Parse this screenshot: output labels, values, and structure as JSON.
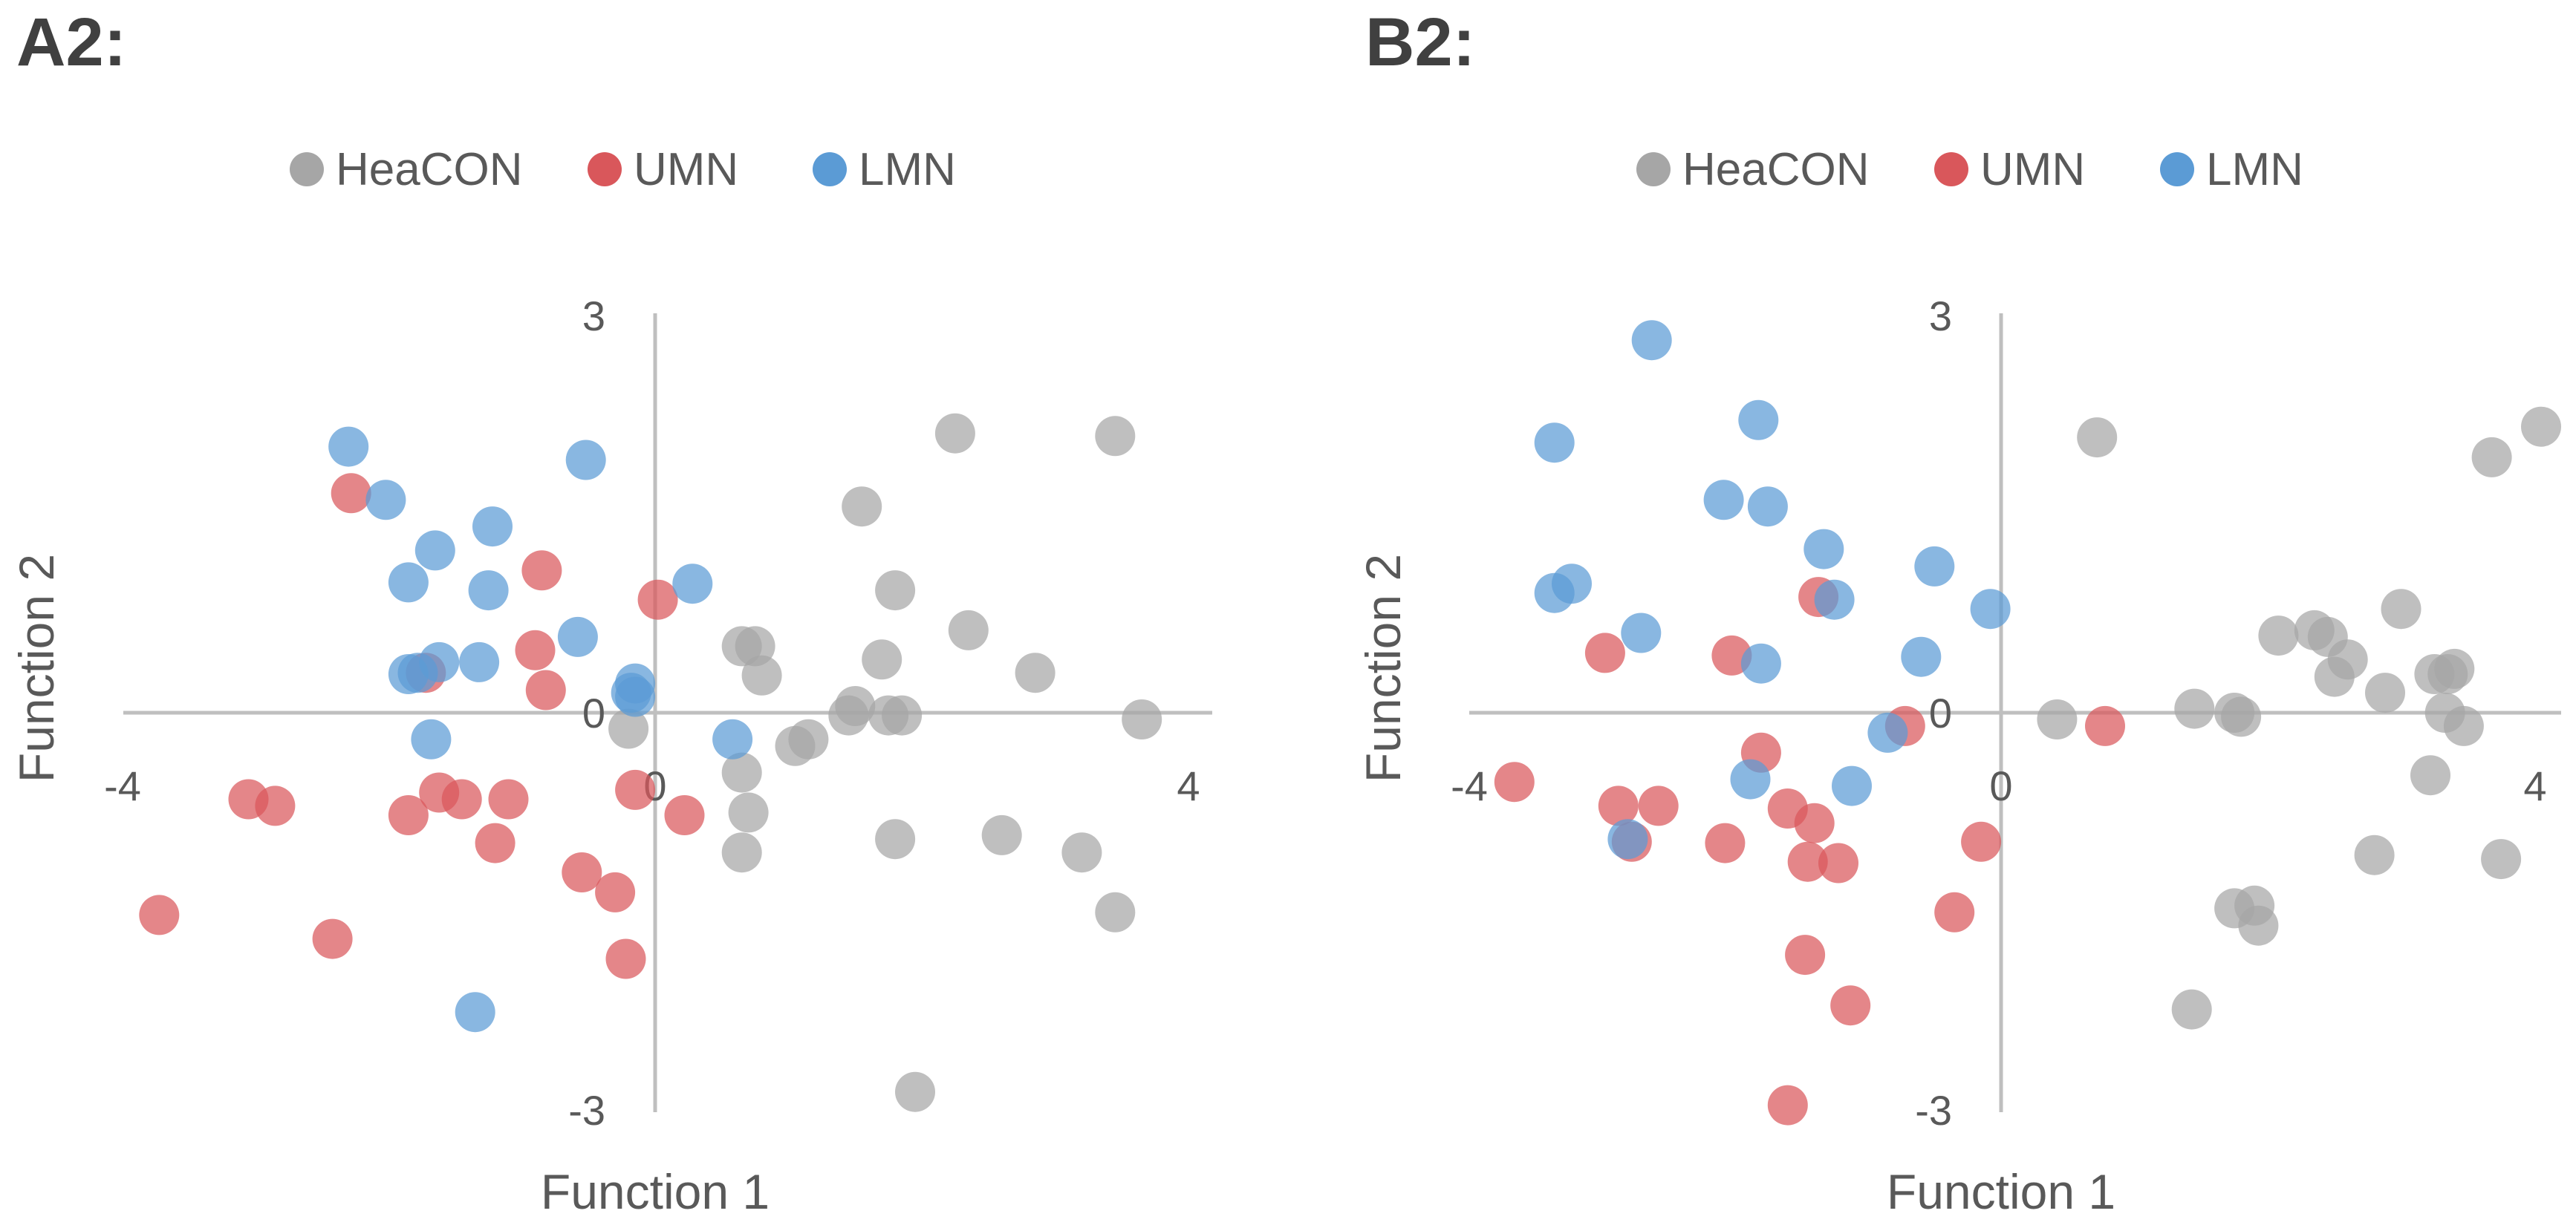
{
  "colors": {
    "HeaCON": "#a6a6a6",
    "UMN": "#d9575b",
    "LMN": "#5b9bd5"
  },
  "chart_data": [
    {
      "panel": "A2:",
      "type": "scatter",
      "xlabel": "Function 1",
      "ylabel": "Function 2",
      "xlim": [
        -4,
        4
      ],
      "ylim": [
        -3,
        3
      ],
      "xticks": [
        -4,
        0,
        4
      ],
      "yticks": [
        3,
        0,
        -3
      ],
      "xtick_labels": [
        "-4",
        "0",
        "4"
      ],
      "ytick_labels": [
        "3",
        "0",
        "-3"
      ],
      "legend": [
        "HeaCON",
        "UMN",
        "LMN"
      ],
      "legend_position": "top",
      "series": [
        {
          "name": "HeaCON",
          "points": [
            [
              2.25,
              2.1
            ],
            [
              3.45,
              2.08
            ],
            [
              1.55,
              1.55
            ],
            [
              1.8,
              0.92
            ],
            [
              2.35,
              0.62
            ],
            [
              0.65,
              0.5
            ],
            [
              0.75,
              0.5
            ],
            [
              0.8,
              0.28
            ],
            [
              1.7,
              0.4
            ],
            [
              2.85,
              0.3
            ],
            [
              1.5,
              0.05
            ],
            [
              1.45,
              -0.02
            ],
            [
              1.75,
              -0.02
            ],
            [
              1.85,
              -0.02
            ],
            [
              1.15,
              -0.2
            ],
            [
              1.05,
              -0.25
            ],
            [
              -0.2,
              -0.12
            ],
            [
              0.65,
              -0.45
            ],
            [
              0.7,
              -0.75
            ],
            [
              0.65,
              -1.05
            ],
            [
              1.8,
              -0.95
            ],
            [
              2.6,
              -0.92
            ],
            [
              3.2,
              -1.05
            ],
            [
              3.65,
              -0.05
            ],
            [
              3.45,
              -1.5
            ],
            [
              1.95,
              -2.85
            ]
          ]
        },
        {
          "name": "UMN",
          "points": [
            [
              -2.28,
              1.65
            ],
            [
              -0.85,
              1.07
            ],
            [
              0.02,
              0.85
            ],
            [
              -0.9,
              0.47
            ],
            [
              -1.72,
              0.3
            ],
            [
              -0.82,
              0.17
            ],
            [
              -3.05,
              -0.65
            ],
            [
              -2.85,
              -0.7
            ],
            [
              -1.62,
              -0.6
            ],
            [
              -1.45,
              -0.65
            ],
            [
              -1.1,
              -0.65
            ],
            [
              -1.85,
              -0.77
            ],
            [
              -1.2,
              -0.98
            ],
            [
              -0.15,
              -0.58
            ],
            [
              0.22,
              -0.77
            ],
            [
              -0.55,
              -1.2
            ],
            [
              -0.3,
              -1.35
            ],
            [
              -3.72,
              -1.52
            ],
            [
              -2.42,
              -1.7
            ],
            [
              -0.22,
              -1.85
            ]
          ]
        },
        {
          "name": "LMN",
          "points": [
            [
              -2.3,
              2.0
            ],
            [
              -2.02,
              1.6
            ],
            [
              -0.52,
              1.9
            ],
            [
              -1.65,
              1.22
            ],
            [
              -1.22,
              1.4
            ],
            [
              -1.85,
              0.98
            ],
            [
              -1.25,
              0.92
            ],
            [
              -0.58,
              0.57
            ],
            [
              0.28,
              0.97
            ],
            [
              -1.62,
              0.38
            ],
            [
              -1.32,
              0.38
            ],
            [
              -1.85,
              0.29
            ],
            [
              -1.78,
              0.3
            ],
            [
              -0.15,
              0.22
            ],
            [
              -0.18,
              0.15
            ],
            [
              -0.15,
              0.12
            ],
            [
              0.58,
              -0.2
            ],
            [
              -1.68,
              -0.2
            ],
            [
              -1.35,
              -2.25
            ]
          ]
        }
      ]
    },
    {
      "panel": "B2:",
      "type": "scatter",
      "xlabel": "Function 1",
      "ylabel": "Function 2",
      "xlim": [
        -4,
        4
      ],
      "ylim": [
        -3,
        3
      ],
      "xticks": [
        -4,
        0,
        4
      ],
      "yticks": [
        3,
        0,
        -3
      ],
      "xtick_labels": [
        "-4",
        "0",
        "4"
      ],
      "ytick_labels": [
        "3",
        "0",
        "-3"
      ],
      "legend": [
        "HeaCON",
        "UMN",
        "LMN"
      ],
      "legend_position": "top",
      "series": [
        {
          "name": "HeaCON",
          "points": [
            [
              0.72,
              2.07
            ],
            [
              4.05,
              2.15
            ],
            [
              3.68,
              1.92
            ],
            [
              3.0,
              0.78
            ],
            [
              2.08,
              0.58
            ],
            [
              2.35,
              0.62
            ],
            [
              2.45,
              0.57
            ],
            [
              2.6,
              0.4
            ],
            [
              2.5,
              0.27
            ],
            [
              3.25,
              0.29
            ],
            [
              3.35,
              0.29
            ],
            [
              3.4,
              0.33
            ],
            [
              2.88,
              0.15
            ],
            [
              0.42,
              -0.05
            ],
            [
              1.45,
              0.03
            ],
            [
              1.75,
              0.0
            ],
            [
              1.8,
              -0.03
            ],
            [
              3.33,
              0.0
            ],
            [
              3.47,
              -0.1
            ],
            [
              3.22,
              -0.47
            ],
            [
              2.8,
              -1.07
            ],
            [
              3.75,
              -1.1
            ],
            [
              1.75,
              -1.47
            ],
            [
              1.9,
              -1.45
            ],
            [
              1.93,
              -1.6
            ],
            [
              1.43,
              -2.23
            ]
          ]
        },
        {
          "name": "UMN",
          "points": [
            [
              -1.37,
              0.87
            ],
            [
              -2.97,
              0.45
            ],
            [
              -2.02,
              0.43
            ],
            [
              -0.72,
              -0.1
            ],
            [
              0.78,
              -0.1
            ],
            [
              -3.65,
              -0.52
            ],
            [
              -2.87,
              -0.7
            ],
            [
              -2.57,
              -0.7
            ],
            [
              -1.6,
              -0.72
            ],
            [
              -1.4,
              -0.83
            ],
            [
              -2.77,
              -0.97
            ],
            [
              -2.07,
              -0.98
            ],
            [
              -0.15,
              -0.97
            ],
            [
              -1.45,
              -1.12
            ],
            [
              -1.22,
              -1.13
            ],
            [
              -0.35,
              -1.5
            ],
            [
              -1.47,
              -1.82
            ],
            [
              -1.13,
              -2.2
            ],
            [
              -1.6,
              -2.95
            ],
            [
              -1.8,
              -0.3
            ]
          ]
        },
        {
          "name": "LMN",
          "points": [
            [
              -2.62,
              2.8
            ],
            [
              -3.35,
              2.03
            ],
            [
              -1.82,
              2.2
            ],
            [
              -2.08,
              1.6
            ],
            [
              -1.75,
              1.55
            ],
            [
              -1.33,
              1.23
            ],
            [
              -0.5,
              1.1
            ],
            [
              -3.22,
              0.97
            ],
            [
              -3.35,
              0.9
            ],
            [
              -1.25,
              0.85
            ],
            [
              -0.08,
              0.78
            ],
            [
              -2.7,
              0.6
            ],
            [
              -0.6,
              0.42
            ],
            [
              -1.8,
              0.37
            ],
            [
              -0.85,
              -0.15
            ],
            [
              -1.88,
              -0.5
            ],
            [
              -1.12,
              -0.55
            ],
            [
              -2.8,
              -0.95
            ]
          ]
        }
      ]
    }
  ]
}
